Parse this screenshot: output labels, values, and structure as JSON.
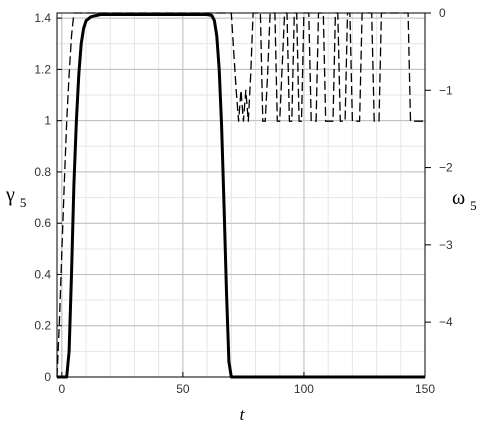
{
  "chart_data": {
    "type": "line",
    "title": "",
    "xlabel": "t",
    "ylabel_left": {
      "symbol": "γ",
      "subscript": "5"
    },
    "ylabel_right": {
      "symbol": "ω",
      "subscript": "5"
    },
    "xlim": [
      -2,
      150
    ],
    "ylim_left": [
      0,
      1.42
    ],
    "ylim_right": [
      -4.71,
      0
    ],
    "x_ticks": [
      0,
      50,
      100,
      150
    ],
    "x_tick_labels": [
      "0",
      "50",
      "100",
      "150"
    ],
    "y_left_ticks": [
      0,
      0.2,
      0.4,
      0.6,
      0.8,
      1,
      1.2,
      1.4
    ],
    "y_left_tick_labels": [
      "0",
      "0.2",
      "0.4",
      "0.6",
      "0.8",
      "1",
      "1.2",
      "1.4"
    ],
    "y_right_ticks": [
      0,
      -1,
      -2,
      -3,
      -4
    ],
    "y_right_tick_labels": [
      "0",
      "−1",
      "−2",
      "−3",
      "−4"
    ],
    "grid": true,
    "legend": "none",
    "series": [
      {
        "axis": "left",
        "style": "solid",
        "color": "#000000",
        "x": [
          -2,
          2,
          3,
          4,
          5,
          6,
          7,
          8,
          9,
          10,
          12,
          14,
          16,
          20,
          30,
          40,
          50,
          60,
          62,
          63,
          64,
          65,
          66,
          67,
          68,
          69,
          70,
          80,
          100,
          120,
          150
        ],
        "y": [
          0,
          0,
          0.1,
          0.4,
          0.75,
          1.0,
          1.18,
          1.3,
          1.36,
          1.39,
          1.405,
          1.41,
          1.414,
          1.414,
          1.414,
          1.414,
          1.414,
          1.414,
          1.41,
          1.39,
          1.33,
          1.2,
          0.98,
          0.66,
          0.33,
          0.06,
          0,
          0,
          0,
          0,
          0
        ]
      },
      {
        "axis": "right",
        "style": "dashed",
        "color": "#000000",
        "x": [
          -2,
          -1,
          0,
          1,
          2,
          3,
          4,
          5,
          10,
          20,
          40,
          60,
          70,
          71,
          72,
          73,
          74,
          75,
          76,
          77,
          78,
          79,
          80,
          82,
          83,
          84,
          85,
          86,
          87,
          88,
          89,
          90,
          92,
          93,
          94,
          95,
          96,
          97,
          98,
          99,
          100,
          102,
          103,
          104,
          105,
          106,
          107,
          108,
          109,
          110,
          112,
          113,
          114,
          115,
          116,
          117,
          118,
          119,
          120,
          122,
          123,
          124,
          125,
          126,
          128,
          129,
          130,
          131,
          132,
          134,
          135,
          136,
          137,
          138,
          140,
          141,
          142,
          143,
          144,
          146,
          148,
          150
        ],
        "y": [
          -4.71,
          -4.0,
          -3.1,
          -2.2,
          -1.4,
          -0.8,
          -0.3,
          0,
          0,
          0,
          0,
          0,
          0,
          -0.5,
          -1.0,
          -1.4,
          -1.0,
          -1.4,
          -1.0,
          -1.4,
          -0.8,
          0,
          0,
          0,
          -1.4,
          -1.4,
          -0.8,
          0,
          0,
          0,
          -1.4,
          -1.4,
          0,
          0,
          -1.4,
          -1.4,
          0,
          0,
          -1.4,
          -1.4,
          0,
          0,
          -1.4,
          -1.4,
          -1.4,
          0,
          0,
          0,
          -1.4,
          -1.4,
          -1.4,
          0,
          0,
          -1.4,
          -1.4,
          -1.4,
          0,
          0,
          -1.4,
          -1.4,
          -1.4,
          0,
          0,
          0,
          0,
          -1.4,
          -1.4,
          -1.4,
          0,
          0,
          0,
          0,
          0,
          0,
          0,
          0,
          0,
          0,
          -1.4,
          -1.4,
          -1.4,
          -1.4
        ]
      }
    ]
  }
}
